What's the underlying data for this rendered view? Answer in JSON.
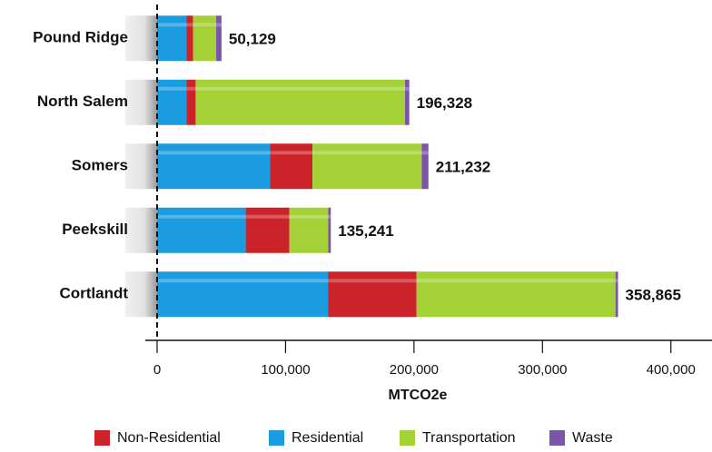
{
  "chart_data": {
    "type": "stacked_bar_horizontal",
    "categories": [
      "Pound Ridge",
      "North Salem",
      "Somers",
      "Peekskill",
      "Cortlandt"
    ],
    "series": [
      {
        "name": "Non-Residential",
        "color": "#cc2229",
        "values": [
          5000,
          7000,
          33000,
          34000,
          69000
        ]
      },
      {
        "name": "Residential",
        "color": "#1b9ce0",
        "values": [
          23000,
          23000,
          88000,
          69000,
          133000
        ]
      },
      {
        "name": "Transportation",
        "color": "#a3d136",
        "values": [
          18000,
          163000,
          85000,
          30241,
          154865
        ]
      },
      {
        "name": "Waste",
        "color": "#7a55a8",
        "values": [
          4129,
          3328,
          5232,
          2000,
          2000
        ]
      }
    ],
    "total_labels": [
      "50,129",
      "196,328",
      "211,232",
      "135,241",
      "358,865"
    ],
    "xlabel": "MTCO2e",
    "xlim": [
      0,
      432000
    ],
    "xticks": [
      0,
      {
        "value": 100000,
        "label": "100,000"
      },
      {
        "value": 200000,
        "label": "200,000"
      },
      {
        "value": 300000,
        "label": "300,000"
      },
      {
        "value": 400000,
        "label": "400,000"
      }
    ],
    "legend": "bottom"
  }
}
